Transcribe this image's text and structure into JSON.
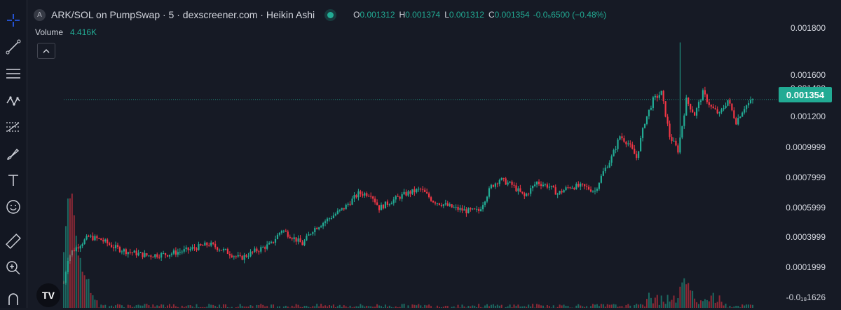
{
  "header": {
    "symbol_badge": "A",
    "title": "ARK/SOL on PumpSwap · 5 · dexscreener.com · Heikin Ashi",
    "ohlc": [
      {
        "key": "O",
        "value": "0.001312"
      },
      {
        "key": "H",
        "value": "0.001374"
      },
      {
        "key": "L",
        "value": "0.001312"
      },
      {
        "key": "C",
        "value": "0.001354"
      }
    ],
    "change": "-0.0₅6500 (−0.48%)"
  },
  "volume": {
    "label": "Volume",
    "value": "4.416K"
  },
  "toolbar": [
    "crosshair-icon",
    "trend-line-icon",
    "horizontal-lines-icon",
    "pattern-icon",
    "fib-icon",
    "brush-icon",
    "text-icon",
    "emoji-icon",
    "ruler-icon",
    "zoom-in-icon",
    "magnet-icon"
  ],
  "logo": "TV",
  "colors": {
    "up": "#22ab94",
    "down": "#f23645",
    "background": "#161a25",
    "last_price": "#22ab94"
  },
  "chart_data": {
    "type": "candlestick",
    "style": "Heikin Ashi",
    "interval": "5",
    "last_price": "0.001354",
    "y_ticks": [
      "0.001800",
      "0.001600",
      "0.001400",
      "0.001200",
      "0.0009999",
      "0.0007999",
      "0.0005999",
      "0.0003999",
      "0.0001999",
      "-0.0₁₈1626"
    ],
    "y_tick_values": [
      0.0018,
      0.0016,
      0.0014,
      0.0012,
      0.0009999,
      0.0007999,
      0.0005999,
      0.0003999,
      0.0001999,
      -1.626e-19
    ],
    "ylim": [
      -3e-05,
      0.00185
    ],
    "price_path": [
      [
        0,
        8e-05
      ],
      [
        2,
        0.00025
      ],
      [
        4,
        0.0003
      ],
      [
        8,
        0.00035
      ],
      [
        12,
        0.0004
      ],
      [
        18,
        0.00038
      ],
      [
        24,
        0.00033
      ],
      [
        30,
        0.0003
      ],
      [
        40,
        0.00027
      ],
      [
        50,
        0.00028
      ],
      [
        60,
        0.00031
      ],
      [
        70,
        0.00035
      ],
      [
        78,
        0.0003
      ],
      [
        85,
        0.00025
      ],
      [
        92,
        0.0003
      ],
      [
        100,
        0.00035
      ],
      [
        105,
        0.00045
      ],
      [
        110,
        0.0004
      ],
      [
        115,
        0.00035
      ],
      [
        120,
        0.00045
      ],
      [
        130,
        0.00055
      ],
      [
        135,
        0.0006
      ],
      [
        142,
        0.0007
      ],
      [
        148,
        0.0007
      ],
      [
        152,
        0.0006
      ],
      [
        158,
        0.00065
      ],
      [
        165,
        0.0007
      ],
      [
        172,
        0.00073
      ],
      [
        178,
        0.00065
      ],
      [
        184,
        0.00062
      ],
      [
        188,
        0.0006
      ],
      [
        194,
        0.00058
      ],
      [
        200,
        0.00058
      ],
      [
        206,
        0.00075
      ],
      [
        210,
        0.0008
      ],
      [
        216,
        0.00076
      ],
      [
        222,
        0.00068
      ],
      [
        228,
        0.00078
      ],
      [
        234,
        0.00075
      ],
      [
        238,
        0.0007
      ],
      [
        244,
        0.00075
      ],
      [
        250,
        0.00075
      ],
      [
        256,
        0.00072
      ],
      [
        260,
        0.00085
      ],
      [
        264,
        0.00095
      ],
      [
        268,
        0.0011
      ],
      [
        272,
        0.00105
      ],
      [
        276,
        0.00095
      ],
      [
        280,
        0.0012
      ],
      [
        284,
        0.00135
      ],
      [
        288,
        0.0014
      ],
      [
        292,
        0.0011
      ],
      [
        296,
        0.001
      ],
      [
        300,
        0.00135
      ],
      [
        304,
        0.00125
      ],
      [
        308,
        0.0014
      ],
      [
        312,
        0.0013
      ],
      [
        316,
        0.00125
      ],
      [
        320,
        0.00135
      ],
      [
        324,
        0.0012
      ],
      [
        328,
        0.0013
      ],
      [
        332,
        0.00135
      ]
    ],
    "spikes": [
      {
        "t": 297,
        "high": 0.00175
      }
    ],
    "volume_peaks": [
      {
        "t": 2,
        "value": 4.416
      },
      {
        "t": 4,
        "value": 4.2
      },
      {
        "t": 8,
        "value": 2.1
      },
      {
        "t": 12,
        "value": 1.2
      },
      {
        "t": 300,
        "value": 1.1
      }
    ]
  }
}
